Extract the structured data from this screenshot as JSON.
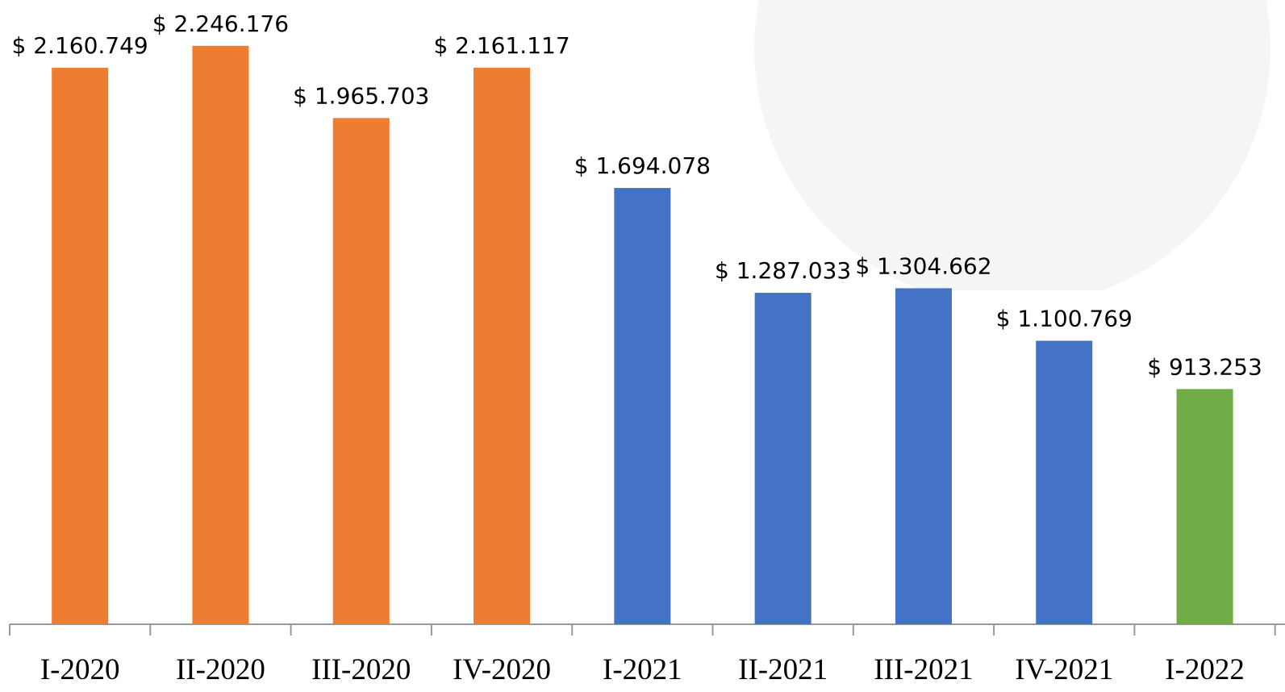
{
  "chart_data": {
    "type": "bar",
    "categories": [
      "I-2020",
      "II-2020",
      "III-2020",
      "IV-2020",
      "I-2021",
      "II-2021",
      "III-2021",
      "IV-2021",
      "I-2022"
    ],
    "values": [
      2160749,
      2246176,
      1965703,
      2161117,
      1694078,
      1287033,
      1304662,
      1100769,
      913253
    ],
    "value_labels": [
      "$ 2.160.749",
      "$ 2.246.176",
      "$ 1.965.703",
      "$ 2.161.117",
      "$ 1.694.078",
      "$ 1.287.033",
      "$ 1.304.662",
      "$ 1.100.769",
      "$ 913.253"
    ],
    "colors": [
      "#ed7d31",
      "#ed7d31",
      "#ed7d31",
      "#ed7d31",
      "#4472c4",
      "#4472c4",
      "#4472c4",
      "#4472c4",
      "#70ad47"
    ],
    "ylim": [
      0,
      2424000
    ]
  }
}
